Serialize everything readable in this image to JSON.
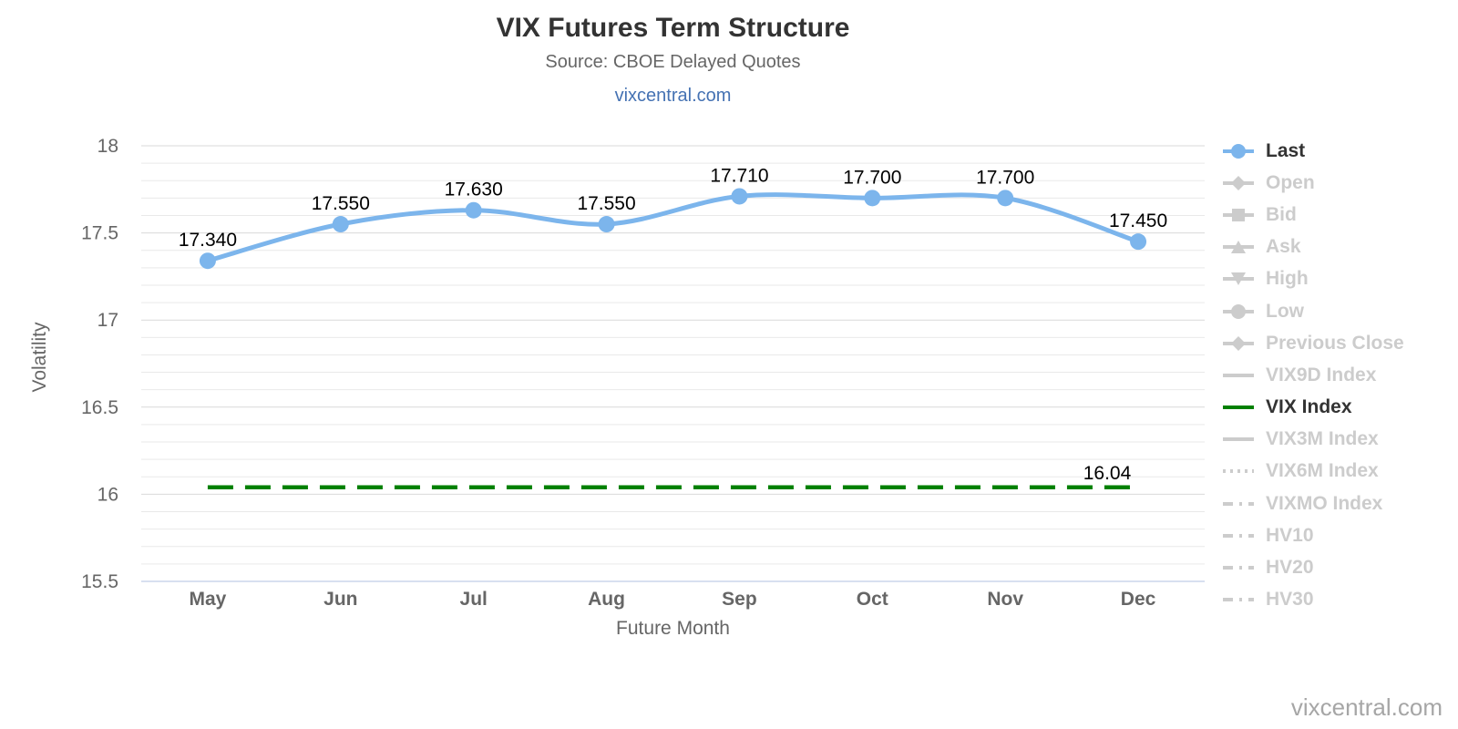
{
  "header": {
    "title": "VIX Futures Term Structure",
    "subtitle": "Source: CBOE Delayed Quotes",
    "link": "vixcentral.com"
  },
  "watermark": "vixcentral.com",
  "colors": {
    "last_blue": "#7cb5ec",
    "vix_green": "#008000",
    "disabled_gray": "#cccccc",
    "axis_line_blue": "#ccd6eb",
    "grid_minor": "#e9e9e9",
    "grid_major": "#d9d9d9",
    "tick_text": "#666666",
    "data_label_text": "#000000",
    "title_text": "#333333",
    "link_blue": "#4572b3",
    "watermark_gray": "#a6a6a6"
  },
  "chart_data": {
    "type": "line",
    "title": "VIX Futures Term Structure",
    "subtitle": "Source: CBOE Delayed Quotes",
    "xlabel": "Future Month",
    "ylabel": "Volatility",
    "categories": [
      "May",
      "Jun",
      "Jul",
      "Aug",
      "Sep",
      "Oct",
      "Nov",
      "Dec"
    ],
    "ylim": [
      15.5,
      18
    ],
    "ytick_interval": 0.5,
    "minor_tick_interval": 0.1,
    "ytick_labels": [
      "15.5",
      "16",
      "16.5",
      "17",
      "17.5",
      "18"
    ],
    "grid": true,
    "legend_position": "right",
    "series": [
      {
        "name": "Last",
        "type": "spline",
        "color": "#7cb5ec",
        "values": [
          17.34,
          17.55,
          17.63,
          17.55,
          17.71,
          17.7,
          17.7,
          17.45
        ],
        "point_labels": [
          "17.340",
          "17.550",
          "17.630",
          "17.550",
          "17.710",
          "17.700",
          "17.700",
          "17.450"
        ]
      },
      {
        "name": "VIX Index",
        "type": "dashed-horizontal-line",
        "color": "#008000",
        "value": 16.04,
        "label": "16.04"
      }
    ]
  },
  "legend": {
    "items": [
      {
        "label": "Last",
        "style": "line-marker",
        "marker": "circle",
        "enabled": true,
        "color": "#7cb5ec"
      },
      {
        "label": "Open",
        "style": "line-marker",
        "marker": "diamond",
        "enabled": false
      },
      {
        "label": "Bid",
        "style": "line-marker",
        "marker": "square",
        "enabled": false
      },
      {
        "label": "Ask",
        "style": "line-marker",
        "marker": "triangle-up",
        "enabled": false
      },
      {
        "label": "High",
        "style": "line-marker",
        "marker": "triangle-down",
        "enabled": false
      },
      {
        "label": "Low",
        "style": "line-marker",
        "marker": "circle",
        "enabled": false
      },
      {
        "label": "Previous Close",
        "style": "line-marker",
        "marker": "diamond",
        "enabled": false
      },
      {
        "label": "VIX9D Index",
        "style": "solid",
        "marker": "none",
        "enabled": false
      },
      {
        "label": "VIX Index",
        "style": "solid",
        "marker": "none",
        "enabled": true,
        "color": "#008000"
      },
      {
        "label": "VIX3M Index",
        "style": "solid",
        "marker": "none",
        "enabled": false
      },
      {
        "label": "VIX6M Index",
        "style": "dotted",
        "marker": "none",
        "enabled": false
      },
      {
        "label": "VIXMO Index",
        "style": "dash-dot",
        "marker": "none",
        "enabled": false
      },
      {
        "label": "HV10",
        "style": "dash-dot",
        "marker": "none",
        "enabled": false
      },
      {
        "label": "HV20",
        "style": "dash-dot",
        "marker": "none",
        "enabled": false
      },
      {
        "label": "HV30",
        "style": "dash-dot",
        "marker": "none",
        "enabled": false
      }
    ]
  }
}
